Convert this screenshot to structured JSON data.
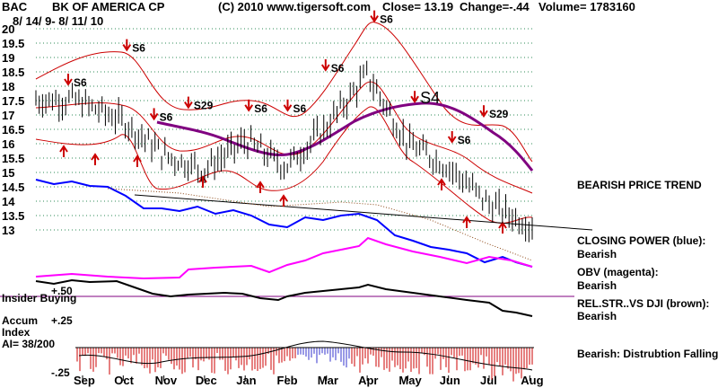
{
  "header": {
    "symbol": "BAC",
    "company": "BK OF AMERICA CP",
    "copyright": "(C) 2010 www.tigersoft.com",
    "close": "Close=  13.19",
    "change": "Change=-.44",
    "volume": "Volume= 1783160",
    "date_range": "8/ 14/ 9- 8/ 11/ 10"
  },
  "sidebar": {
    "price_trend": "BEARISH PRICE TREND",
    "closing_power_label": "CLOSING POWER (blue):",
    "closing_power_value": "Bearish",
    "obv_label": "OBV (magenta):",
    "obv_value": "Bearish",
    "relstr_label": "REL.STR..VS DJI (brown):",
    "relstr_value": "Bearish",
    "accum_note": "Bearish:  Distrubtion Falling."
  },
  "lower_panel": {
    "insider_buying": "Insider Buying",
    "plus50": "+.50",
    "accum_index": "Accum",
    "index_word": "Index",
    "ai_value": "AI= 38/200",
    "plus25": "+.25",
    "minus25": "-.25"
  },
  "colors": {
    "price_bars": "#000000",
    "bollinger": "#cc0000",
    "moving_average": "#800080",
    "closing_power": "#0000ff",
    "obv": "#ff00ff",
    "relative_strength": "#8b4513",
    "accum_positive": "#3333cc",
    "accum_negative": "#cc0000",
    "insider_line": "#800080",
    "grid": "#2e8b57"
  },
  "chart_data": {
    "type": "line",
    "title": "BK OF AMERICA CP",
    "x_ticks": [
      "Sep",
      "Oct",
      "Nov",
      "Dec",
      "Jan",
      "Feb",
      "Mar",
      "Apr",
      "May",
      "Jun",
      "Jul",
      "Aug"
    ],
    "y_ticks": [
      "20",
      "19.5",
      "19",
      "18.5",
      "18",
      "17.5",
      "17",
      "16.5",
      "16",
      "15.5",
      "15",
      "14.5",
      "14",
      "13.5",
      "13"
    ],
    "ylim": [
      13,
      20
    ],
    "grid": true,
    "close_by_month": [
      {
        "x": "Sep",
        "y": 17.4
      },
      {
        "x": "Oct",
        "y": 16.8
      },
      {
        "x": "Nov",
        "y": 15.6
      },
      {
        "x": "Dec",
        "y": 15.1
      },
      {
        "x": "Jan",
        "y": 16.1
      },
      {
        "x": "Feb",
        "y": 15.2
      },
      {
        "x": "Mar",
        "y": 16.6
      },
      {
        "x": "Apr",
        "y": 18.4
      },
      {
        "x": "May",
        "y": 16.0
      },
      {
        "x": "Jun",
        "y": 15.2
      },
      {
        "x": "Jul",
        "y": 13.9
      },
      {
        "x": "Aug",
        "y": 13.19
      }
    ],
    "signals": [
      {
        "label": "S6",
        "x": "Sep",
        "y": 18.0
      },
      {
        "label": "S6",
        "x": "Oct",
        "y": 19.2
      },
      {
        "label": "S6",
        "x": "Nov",
        "y": 16.8
      },
      {
        "label": "S29",
        "x": "Dec",
        "y": 17.2
      },
      {
        "label": "S6",
        "x": "Jan",
        "y": 17.1
      },
      {
        "label": "S6",
        "x": "Feb",
        "y": 17.1
      },
      {
        "label": "S6",
        "x": "Mar",
        "y": 18.5
      },
      {
        "label": "S6",
        "x": "Apr",
        "y": 20.2
      },
      {
        "label": "S4",
        "x": "Apr",
        "y": 17.4
      },
      {
        "label": "S6",
        "x": "Jun",
        "y": 16.0
      },
      {
        "label": "S29",
        "x": "Jul",
        "y": 16.9
      }
    ]
  }
}
